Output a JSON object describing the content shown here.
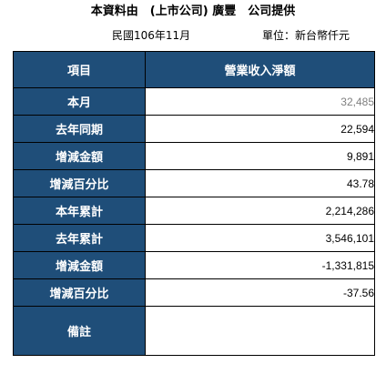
{
  "report": {
    "title": "本資料由　(上市公司) 廣豐　公司提供",
    "period": "民國106年11月",
    "unit": "單位：新台幣仟元"
  },
  "table": {
    "headers": [
      "項目",
      "營業收入淨額"
    ],
    "rows": [
      {
        "label": "本月",
        "value": "32,485"
      },
      {
        "label": "去年同期",
        "value": "22,594"
      },
      {
        "label": "增減金額",
        "value": "9,891"
      },
      {
        "label": "增減百分比",
        "value": "43.78"
      },
      {
        "label": "本年累計",
        "value": "2,214,286"
      },
      {
        "label": "去年累計",
        "value": "3,546,101"
      },
      {
        "label": "增減金額",
        "value": "-1,331,815"
      },
      {
        "label": "增減百分比",
        "value": "-37.56"
      }
    ],
    "note": {
      "label": "備註",
      "value": ""
    }
  },
  "colors": {
    "header_fill": "#1f4e79",
    "header_text": "#ffffff",
    "border": "#000000",
    "muted_value": "#7f7f7f"
  }
}
